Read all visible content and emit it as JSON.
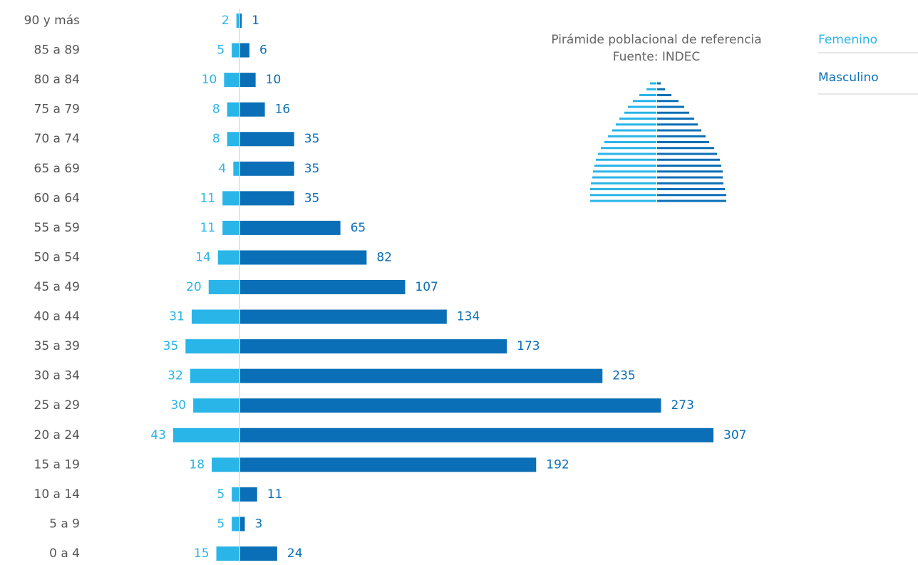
{
  "chart_data": {
    "type": "pyramid",
    "categories": [
      "90 y más",
      "85 a 89",
      "80 a 84",
      "75 a 79",
      "70 a 74",
      "65 a 69",
      "60 a 64",
      "55 a 59",
      "50 a 54",
      "45 a 49",
      "40 a 44",
      "35 a 39",
      "30 a 34",
      "25 a 29",
      "20 a 24",
      "15 a 19",
      "10 a 14",
      "5 a 9",
      "0 a 4"
    ],
    "series": [
      {
        "name": "Femenino",
        "color": "#29b5e8",
        "values": [
          2,
          5,
          10,
          8,
          8,
          4,
          11,
          11,
          14,
          20,
          31,
          35,
          32,
          30,
          43,
          18,
          5,
          5,
          15
        ]
      },
      {
        "name": "Masculino",
        "color": "#0a6fb6",
        "values": [
          1,
          6,
          10,
          16,
          35,
          35,
          35,
          65,
          82,
          107,
          134,
          173,
          235,
          273,
          307,
          192,
          11,
          3,
          24
        ]
      }
    ],
    "reference": {
      "title": "Pirámide poblacional de referencia",
      "subtitle": "Fuente: INDEC",
      "femenino": [
        9,
        14,
        24,
        33,
        40,
        45,
        52,
        57,
        62,
        68,
        73,
        78,
        82,
        85,
        87,
        89,
        90,
        92,
        93,
        93,
        93
      ],
      "masculino": [
        5,
        11,
        20,
        30,
        38,
        45,
        52,
        57,
        62,
        68,
        73,
        80,
        84,
        88,
        90,
        92,
        92,
        93,
        95,
        97,
        97
      ]
    }
  }
}
